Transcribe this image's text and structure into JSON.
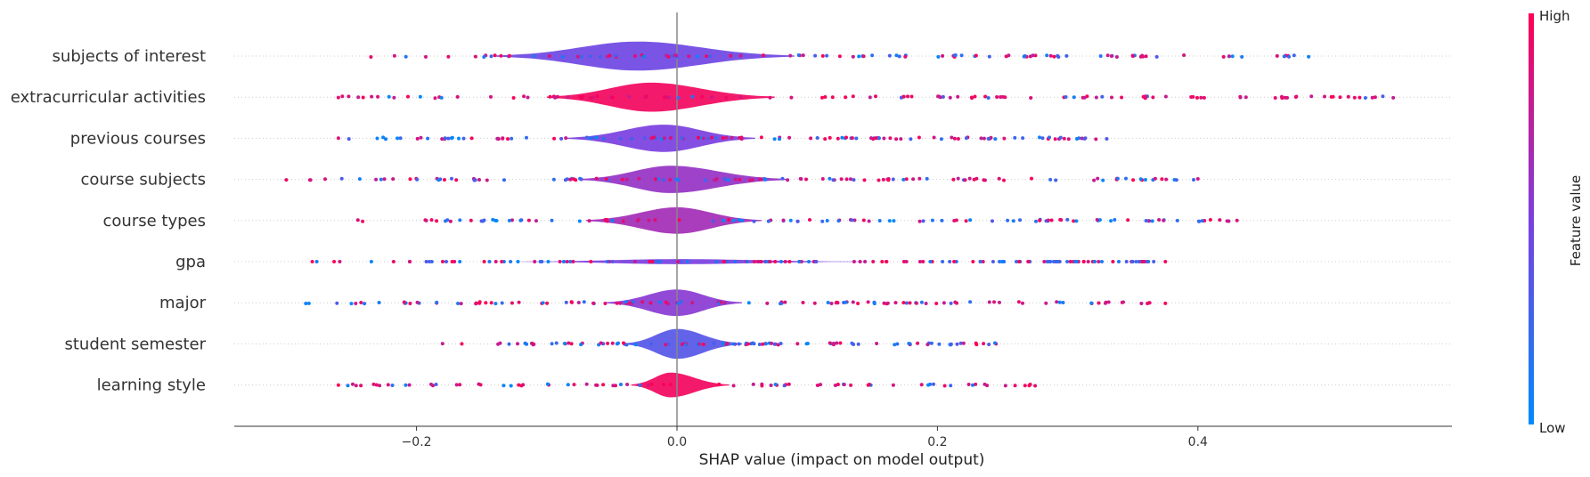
{
  "chart_data": {
    "type": "violin",
    "xlabel": "SHAP value (impact on model output)",
    "x_ticks": [
      -0.2,
      0.0,
      0.2,
      0.4
    ],
    "x_tick_labels": [
      "−0.2",
      "0.0",
      "0.2",
      "0.4"
    ],
    "xlim": [
      -0.34,
      0.595
    ],
    "colorbar": {
      "title": "Feature value",
      "high_label": "High",
      "low_label": "Low",
      "low_color": "#008bfb",
      "mid_color": "#7b3fe0",
      "high_color": "#ff0052"
    },
    "features": [
      {
        "name": "subjects of interest",
        "range": [
          -0.235,
          0.485
        ],
        "violin": [
          -0.14,
          0.09
        ],
        "peak": -0.03,
        "dots": 110,
        "mix": 0.5,
        "body": 0.45,
        "max_w": 0.68
      },
      {
        "name": "extracurricular activities",
        "range": [
          -0.26,
          0.55
        ],
        "violin": [
          -0.1,
          0.075
        ],
        "peak": -0.02,
        "dots": 120,
        "mix": 0.85,
        "body": 0.95,
        "max_w": 0.68
      },
      {
        "name": "previous courses",
        "range": [
          -0.26,
          0.33
        ],
        "violin": [
          -0.085,
          0.06
        ],
        "peak": -0.01,
        "dots": 120,
        "mix": 0.5,
        "body": 0.5,
        "max_w": 0.64
      },
      {
        "name": "course subjects",
        "range": [
          -0.3,
          0.4
        ],
        "violin": [
          -0.075,
          0.085
        ],
        "peak": -0.005,
        "dots": 120,
        "mix": 0.6,
        "body": 0.6,
        "max_w": 0.64
      },
      {
        "name": "course types",
        "range": [
          -0.245,
          0.43
        ],
        "violin": [
          -0.07,
          0.065
        ],
        "peak": 0.0,
        "dots": 110,
        "mix": 0.55,
        "body": 0.65,
        "max_w": 0.62
      },
      {
        "name": "gpa",
        "range": [
          -0.28,
          0.375
        ],
        "violin": [
          -0.12,
          0.145
        ],
        "peak": 0.0,
        "dots": 150,
        "mix": 0.5,
        "body": 0.5,
        "max_w": 0.12
      },
      {
        "name": "major",
        "range": [
          -0.285,
          0.375
        ],
        "violin": [
          -0.055,
          0.05
        ],
        "peak": 0.0,
        "dots": 120,
        "mix": 0.65,
        "body": 0.55,
        "max_w": 0.62
      },
      {
        "name": "student semester",
        "range": [
          -0.18,
          0.245
        ],
        "violin": [
          -0.04,
          0.05
        ],
        "peak": 0.0,
        "dots": 100,
        "mix": 0.55,
        "body": 0.35,
        "max_w": 0.7
      },
      {
        "name": "learning style",
        "range": [
          -0.26,
          0.275
        ],
        "violin": [
          -0.035,
          0.04
        ],
        "peak": -0.005,
        "dots": 80,
        "mix": 0.8,
        "body": 0.95,
        "max_w": 0.58
      }
    ]
  }
}
